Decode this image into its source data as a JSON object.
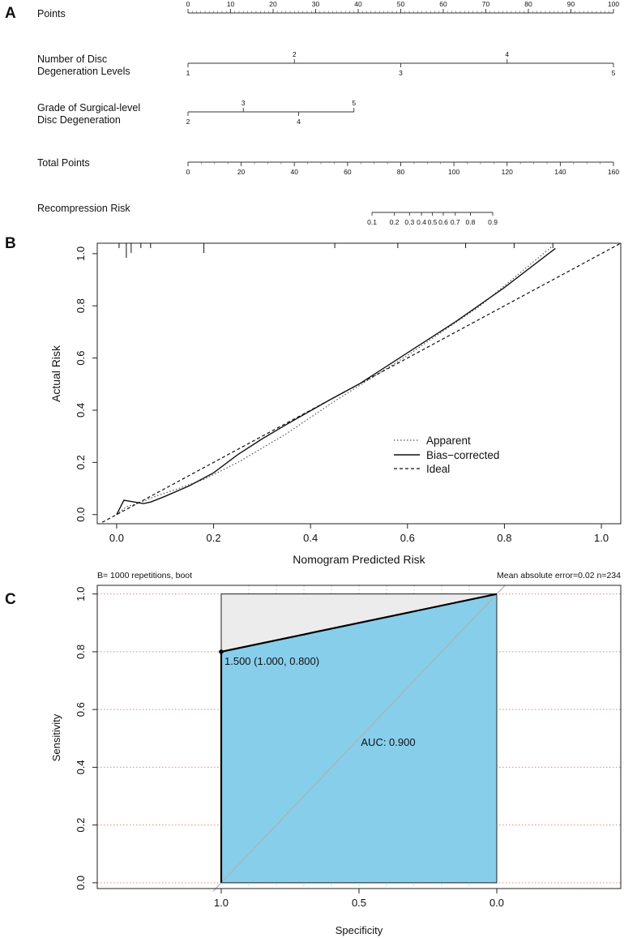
{
  "panels": {
    "a": "A",
    "b": "B",
    "c": "C"
  },
  "chart_data": [
    {
      "type": "nomogram",
      "panel": "A",
      "rows": [
        {
          "label_lines": [
            "Points"
          ],
          "min": 0,
          "max": 100,
          "top_ticks": [
            0,
            10,
            20,
            30,
            40,
            50,
            60,
            70,
            80,
            90,
            100
          ],
          "bottom_ticks": [],
          "minor_step": 1
        },
        {
          "label_lines": [
            "Number of Disc",
            "Degeneration Levels"
          ],
          "min": 1,
          "max": 5,
          "top_ticks": [
            2,
            4
          ],
          "bottom_ticks": [
            1,
            3,
            5
          ]
        },
        {
          "label_lines": [
            "Grade of Surgical-level",
            "Disc Degeneration"
          ],
          "min": 2,
          "max": 5,
          "top_ticks": [
            3,
            5
          ],
          "bottom_ticks": [
            2,
            4
          ]
        },
        {
          "label_lines": [
            "Total Points"
          ],
          "min": 0,
          "max": 160,
          "top_ticks": [],
          "bottom_ticks": [
            0,
            20,
            40,
            60,
            80,
            100,
            120,
            140,
            160
          ],
          "minor_step": 5
        },
        {
          "label_lines": [
            "Recompression Risk"
          ],
          "min": 0,
          "max": 160,
          "top_ticks": [],
          "bottom_ticks": [
            0.1,
            0.2,
            0.3,
            0.4,
            0.5,
            0.6,
            0.7,
            0.8,
            0.9
          ],
          "bottom_labels": [
            "0.1",
            "0.2",
            "0.3",
            "0.4",
            "0.5",
            "0.6",
            "0.7",
            "0.8",
            "0.9"
          ]
        }
      ],
      "scale_points": {
        "levels": {
          "1": 0,
          "2": 25,
          "3": 50,
          "4": 75,
          "5": 100
        },
        "grade": {
          "2": 0,
          "3": 13,
          "4": 26,
          "5": 39
        },
        "risk_total_points": [
          69.2,
          77.6,
          83.3,
          87.8,
          91.9,
          96.0,
          100.5,
          106.2,
          114.6
        ]
      }
    },
    {
      "type": "line",
      "panel": "B",
      "xlabel": "Nomogram Predicted Risk",
      "ylabel": "Actual Risk",
      "xlim": [
        -0.04,
        1.04
      ],
      "ylim": [
        -0.035,
        1.04
      ],
      "xticks": [
        0.0,
        0.2,
        0.4,
        0.6,
        0.8,
        1.0
      ],
      "xtick_labels": [
        "0.0",
        "0.2",
        "0.4",
        "0.6",
        "0.8",
        "1.0"
      ],
      "yticks": [
        0.0,
        0.2,
        0.4,
        0.6,
        0.8,
        1.0
      ],
      "ytick_labels": [
        "0.0",
        "0.2",
        "0.4",
        "0.6",
        "0.8",
        "1.0"
      ],
      "series": [
        {
          "name": "Apparent",
          "style": "dotted",
          "x": [
            0.0,
            0.02,
            0.05,
            0.08,
            0.12,
            0.18,
            0.25,
            0.35,
            0.45,
            0.6,
            0.75,
            0.9
          ],
          "y": [
            0.0,
            0.03,
            0.047,
            0.07,
            0.095,
            0.135,
            0.2,
            0.31,
            0.435,
            0.61,
            0.8,
            1.03
          ]
        },
        {
          "name": "Bias-corrected",
          "style": "solid",
          "x": [
            0.0,
            0.015,
            0.04,
            0.055,
            0.07,
            0.1,
            0.15,
            0.2,
            0.25,
            0.3,
            0.35,
            0.44,
            0.5,
            0.6,
            0.7,
            0.8,
            0.905
          ],
          "y": [
            0.0,
            0.055,
            0.047,
            0.042,
            0.048,
            0.07,
            0.11,
            0.16,
            0.23,
            0.29,
            0.345,
            0.44,
            0.5,
            0.62,
            0.74,
            0.87,
            1.02
          ]
        },
        {
          "name": "Ideal",
          "style": "dashed",
          "x": [
            -0.04,
            1.04
          ],
          "y": [
            -0.04,
            1.04
          ]
        }
      ],
      "rug_x": [
        0.005,
        0.02,
        0.03,
        0.05,
        0.07,
        0.18,
        0.45,
        0.58,
        0.72,
        0.82,
        0.9
      ],
      "rug_len": [
        1,
        3,
        2,
        1,
        1,
        2,
        1,
        1,
        1,
        1,
        1
      ],
      "legend": [
        "Apparent",
        "Bias−corrected",
        "Ideal"
      ],
      "legend_position": "bottom-right",
      "footnote_left": "B= 1000 repetitions, boot",
      "footnote_right": "Mean absolute error=0.02 n=234"
    },
    {
      "type": "roc",
      "panel": "C",
      "xlabel": "Specificity",
      "ylabel": "Sensitivity",
      "xlim": [
        1.45,
        -0.45
      ],
      "ylim": [
        -0.02,
        1.03
      ],
      "xticks": [
        1.0,
        0.5,
        0.0
      ],
      "xtick_labels": [
        "1.0",
        "0.5",
        "0.0"
      ],
      "yticks": [
        0.0,
        0.2,
        0.4,
        0.6,
        0.8,
        1.0
      ],
      "ytick_labels": [
        "0.0",
        "0.2",
        "0.4",
        "0.6",
        "0.8",
        "1.0"
      ],
      "grid_y": [
        0.0,
        0.2,
        0.4,
        0.6,
        0.8,
        1.0
      ],
      "grid_x": [
        0.9,
        0.8,
        0.7,
        0.6,
        0.5,
        0.4,
        0.3,
        0.2,
        0.1
      ],
      "curve": {
        "specificity": [
          1.0,
          1.0,
          0.0
        ],
        "sensitivity": [
          0.0,
          0.8,
          1.0
        ]
      },
      "threshold_point": {
        "specificity": 1.0,
        "sensitivity": 0.8,
        "label": "1.500 (1.000, 0.800)"
      },
      "auc_label": "AUC: 0.900",
      "colors": {
        "auc_fill": "#87ceeb",
        "ci_fill": "#ececec",
        "grid": "#f08080",
        "grid_v": "#90d890",
        "diag": "#b0b0b0"
      }
    }
  ]
}
